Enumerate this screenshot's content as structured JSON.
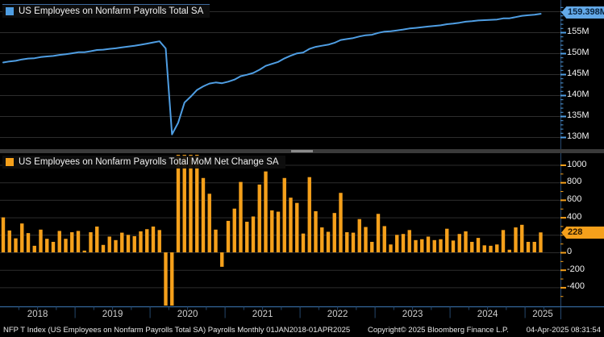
{
  "panels": {
    "top": {
      "legend": {
        "label": "US Employees on Nonfarm Payrolls Total SA",
        "swatch_color": "#4f9ee3"
      },
      "badge": {
        "value": "159.398M",
        "color": "#63a9e8"
      },
      "axis_labels": [
        {
          "label": "155M",
          "value": 155
        },
        {
          "label": "150M",
          "value": 150
        },
        {
          "label": "145M",
          "value": 145
        },
        {
          "label": "140M",
          "value": 140
        },
        {
          "label": "135M",
          "value": 135
        },
        {
          "label": "130M",
          "value": 130
        }
      ]
    },
    "bottom": {
      "legend": {
        "label": "US Employees on Nonfarm Payrolls Total MoM Net Change SA",
        "swatch_color": "#f5a01b"
      },
      "badge": {
        "value": "228",
        "color": "#f5a01b"
      },
      "axis_labels": [
        {
          "label": "1000",
          "value": 1000
        },
        {
          "label": "800",
          "value": 800
        },
        {
          "label": "600",
          "value": 600
        },
        {
          "label": "400",
          "value": 400
        },
        {
          "label": "0",
          "value": 0
        },
        {
          "label": "-200",
          "value": -200
        },
        {
          "label": "-400",
          "value": -400
        }
      ]
    }
  },
  "x_axis": {
    "years": [
      "2018",
      "2019",
      "2020",
      "2021",
      "2022",
      "2023",
      "2024",
      "2025"
    ]
  },
  "status_bar": {
    "left": "NFP T Index (US Employees on Nonfarm Payrolls Total SA) Payrolls  Monthly 01JAN2018-01APR2025",
    "center": "Copyright© 2025 Bloomberg Finance L.P.",
    "right": "04-Apr-2025 08:31:54"
  },
  "colors": {
    "line": "#4f9ee3",
    "bar": "#f5a01b",
    "grid": "#2d2d2d",
    "x_axis_line": "#35679c",
    "year_tick": "#24466b",
    "right_axis_line": "#26486e"
  },
  "chart_data": [
    {
      "type": "line",
      "title": "US Employees on Nonfarm Payrolls Total SA",
      "x_range": {
        "start": "2018-01",
        "end": "2025-03",
        "freq": "monthly"
      },
      "unit": "millions",
      "ylim": [
        128.5,
        162.5
      ],
      "ytick_step": 5,
      "legend_position": "top-left",
      "last_value_label": "159.398M",
      "values": [
        147.78,
        148.03,
        148.19,
        148.52,
        148.74,
        148.815,
        149.075,
        149.23,
        149.35,
        149.595,
        149.75,
        149.98,
        150.225,
        150.245,
        150.475,
        150.77,
        150.855,
        151.035,
        151.175,
        151.4,
        151.6,
        151.785,
        152.025,
        152.29,
        152.585,
        152.84,
        151.14,
        130.64,
        133.44,
        138.24,
        139.64,
        141.24,
        142.09,
        142.76,
        143.02,
        142.855,
        143.215,
        143.715,
        144.52,
        144.87,
        145.28,
        146.055,
        146.98,
        147.46,
        147.925,
        148.775,
        149.4,
        149.965,
        150.18,
        151.04,
        151.51,
        151.795,
        152.03,
        152.48,
        153.16,
        153.39,
        153.615,
        153.995,
        154.285,
        154.405,
        154.845,
        155.145,
        155.235,
        155.435,
        155.645,
        155.9,
        156.04,
        156.19,
        156.37,
        156.51,
        156.66,
        156.93,
        157.065,
        157.275,
        157.515,
        157.635,
        157.8,
        157.88,
        157.955,
        158.045,
        158.3,
        158.33,
        158.615,
        158.93,
        159.05,
        159.17,
        159.398
      ]
    },
    {
      "type": "bar",
      "title": "US Employees on Nonfarm Payrolls Total MoM Net Change SA",
      "x_range": {
        "start": "2018-01",
        "end": "2025-03",
        "freq": "monthly"
      },
      "unit": "thousands",
      "ylim": [
        -620,
        1120
      ],
      "ytick_step": 200,
      "legend_position": "top-left",
      "last_value_label": "228",
      "clipping_note": "2020 pandemic bars exceed axis range and are clipped at panel edges",
      "values": [
        400,
        250,
        160,
        330,
        220,
        75,
        260,
        155,
        120,
        245,
        155,
        230,
        245,
        20,
        230,
        295,
        85,
        180,
        140,
        225,
        200,
        185,
        240,
        265,
        295,
        255,
        -1700,
        -20500,
        2800,
        4800,
        1400,
        1600,
        850,
        670,
        260,
        -165,
        360,
        500,
        805,
        350,
        410,
        775,
        925,
        480,
        465,
        850,
        625,
        565,
        215,
        860,
        470,
        285,
        235,
        450,
        680,
        230,
        225,
        380,
        290,
        120,
        440,
        300,
        90,
        200,
        210,
        255,
        140,
        150,
        180,
        140,
        150,
        270,
        135,
        210,
        240,
        120,
        165,
        80,
        75,
        90,
        255,
        30,
        285,
        315,
        120,
        120,
        228
      ]
    }
  ]
}
